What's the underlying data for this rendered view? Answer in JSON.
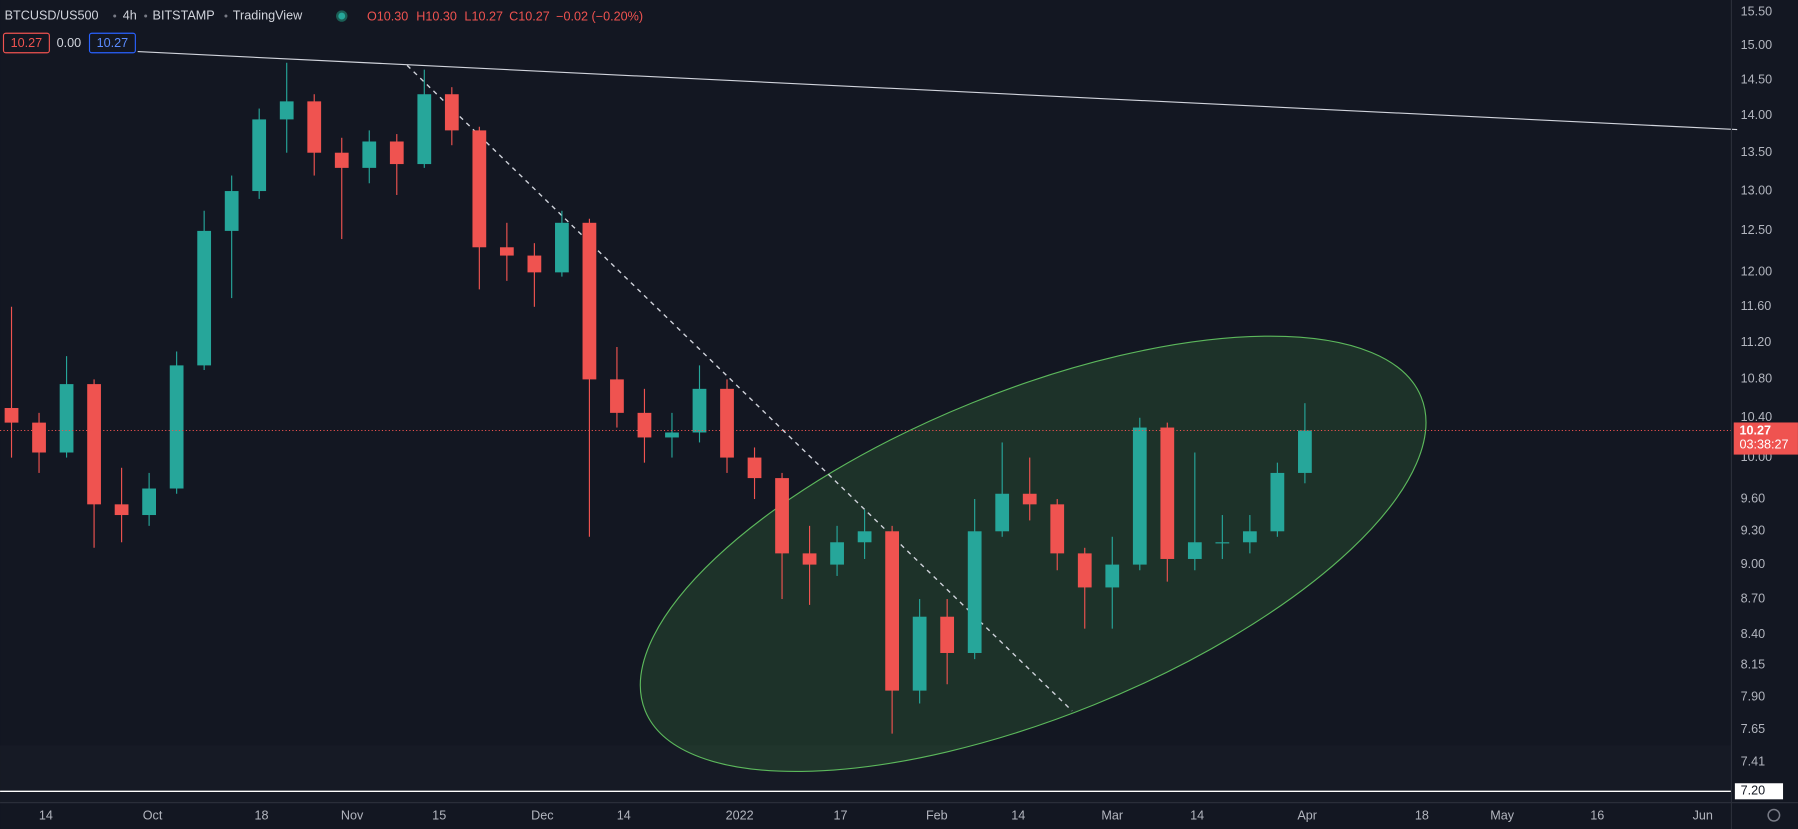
{
  "header": {
    "symbol": "BTCUSD/US500",
    "interval": "4h",
    "exchange": "BITSTAMP",
    "source": "TradingView",
    "open": "O10.30",
    "high": "H10.30",
    "low": "L10.27",
    "close": "C10.27",
    "change": "−0.02 (−0.20%)",
    "badges": [
      "10.27",
      "0.00",
      "10.27"
    ],
    "countdown": "03:38:27"
  },
  "chart_data": {
    "type": "candlestick",
    "log_scale": true,
    "grid": false,
    "up_color": "#26a69a",
    "down_color": "#ef5350",
    "open": [
      10.5,
      10.35,
      10.05,
      10.75,
      9.55,
      9.45,
      9.7,
      10.95,
      12.5,
      13.0,
      13.95,
      14.2,
      13.5,
      13.3,
      13.65,
      13.35,
      14.3,
      13.8,
      12.3,
      12.2,
      12.0,
      12.6,
      10.8,
      10.45,
      10.2,
      10.25,
      10.7,
      10.0,
      9.8,
      9.1,
      9.0,
      9.2,
      9.3,
      7.95,
      8.55,
      8.25,
      9.3,
      9.65,
      9.55,
      9.1,
      8.8,
      9.0,
      10.3,
      9.05,
      9.2,
      9.2,
      9.3,
      9.85
    ],
    "high": [
      11.6,
      10.45,
      11.05,
      10.8,
      9.9,
      9.85,
      11.1,
      12.75,
      13.2,
      14.1,
      14.75,
      14.3,
      13.7,
      13.8,
      13.75,
      14.65,
      14.4,
      13.85,
      12.6,
      12.35,
      12.75,
      12.65,
      11.15,
      10.7,
      10.45,
      10.95,
      10.8,
      10.1,
      9.85,
      9.35,
      9.35,
      9.5,
      9.35,
      8.7,
      8.7,
      9.6,
      10.15,
      10.0,
      9.6,
      9.15,
      9.25,
      10.4,
      10.35,
      10.05,
      9.45,
      9.45,
      9.95,
      10.55
    ],
    "low": [
      10.0,
      9.85,
      10.0,
      9.15,
      9.2,
      9.35,
      9.65,
      10.9,
      11.7,
      12.9,
      13.5,
      13.2,
      12.4,
      13.1,
      12.95,
      13.3,
      13.6,
      11.8,
      11.9,
      11.6,
      11.95,
      9.25,
      10.3,
      9.95,
      10.0,
      10.15,
      9.85,
      9.6,
      8.7,
      8.65,
      8.9,
      9.05,
      7.62,
      7.85,
      8.0,
      8.2,
      9.25,
      9.4,
      8.95,
      8.45,
      8.45,
      8.95,
      8.85,
      8.95,
      9.05,
      9.1,
      9.25,
      9.75
    ],
    "close": [
      10.35,
      10.05,
      10.75,
      9.55,
      9.45,
      9.7,
      10.95,
      12.5,
      13.0,
      13.95,
      14.2,
      13.5,
      13.3,
      13.65,
      13.35,
      14.3,
      13.8,
      12.3,
      12.2,
      12.0,
      12.6,
      10.8,
      10.45,
      10.2,
      10.25,
      10.7,
      10.0,
      9.8,
      9.1,
      9.0,
      9.2,
      9.3,
      7.95,
      8.55,
      8.25,
      9.3,
      9.65,
      9.55,
      9.1,
      8.8,
      9.0,
      10.3,
      9.05,
      9.2,
      9.2,
      9.3,
      9.85,
      10.27
    ],
    "horizontal_line": 7.2,
    "ylim": [
      7.12,
      15.69
    ],
    "yticks": [
      {
        "value": 15.5,
        "label": "15.50"
      },
      {
        "value": 15,
        "label": "15.00"
      },
      {
        "value": 14.5,
        "label": "14.50"
      },
      {
        "value": 14,
        "label": "14.00"
      },
      {
        "value": 13.5,
        "label": "13.50"
      },
      {
        "value": 13,
        "label": "13.00"
      },
      {
        "value": 12.5,
        "label": "12.50"
      },
      {
        "value": 12,
        "label": "12.00"
      },
      {
        "value": 11.6,
        "label": "11.60"
      },
      {
        "value": 11.2,
        "label": "11.20"
      },
      {
        "value": 10.8,
        "label": "10.80"
      },
      {
        "value": 10.4,
        "label": "10.40"
      },
      {
        "value": 10,
        "label": "10.00"
      },
      {
        "value": 9.6,
        "label": "9.60"
      },
      {
        "value": 9.3,
        "label": "9.30"
      },
      {
        "value": 9,
        "label": "9.00"
      },
      {
        "value": 8.7,
        "label": "8.70"
      },
      {
        "value": 8.4,
        "label": "8.40"
      },
      {
        "value": 8.15,
        "label": "8.15"
      },
      {
        "value": 7.9,
        "label": "7.90"
      },
      {
        "value": 7.65,
        "label": "7.65"
      },
      {
        "value": 7.41,
        "label": "7.41"
      },
      {
        "value": 7.2,
        "label": "7.20"
      }
    ],
    "x_labels": [
      "14",
      "Oct",
      "18",
      "Nov",
      "15",
      "Dec",
      "14",
      "2022",
      "17",
      "Feb",
      "14",
      "Mar",
      "14",
      "Apr",
      "18",
      "May",
      "16",
      "Jun"
    ]
  }
}
